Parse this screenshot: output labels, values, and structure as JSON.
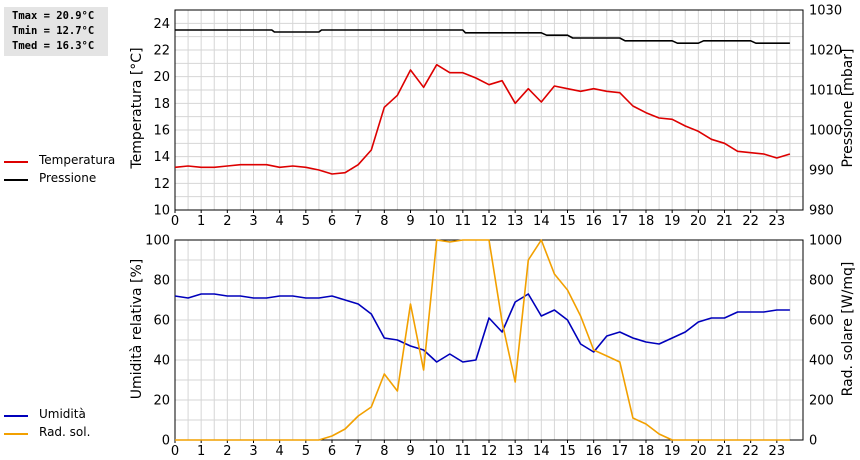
{
  "stats": {
    "tmax": "Tmax = 20.9°C",
    "tmin": "Tmin = 12.7°C",
    "tmed": "Tmed = 16.3°C"
  },
  "colors": {
    "temperatura": "#dd0000",
    "pressione": "#000000",
    "umidita": "#0000bb",
    "radiazione": "#f2a000",
    "grid": "#d6d6d6"
  },
  "legend_top": [
    {
      "name": "Temperatura",
      "color": "#dd0000"
    },
    {
      "name": "Pressione",
      "color": "#000000"
    }
  ],
  "legend_bottom": [
    {
      "name": "Umidità",
      "color": "#0000bb"
    },
    {
      "name": "Rad. sol.",
      "color": "#f2a000"
    }
  ],
  "chart_data": [
    {
      "type": "line",
      "xlabel": "",
      "ylabel": "Temperatura [°C]",
      "y2label": "Pressione [mbar]",
      "xlim": [
        0,
        24
      ],
      "ylim": [
        10,
        25
      ],
      "y2lim": [
        980,
        1030
      ],
      "xticks": [
        "0",
        "1",
        "2",
        "3",
        "4",
        "5",
        "6",
        "7",
        "8",
        "9",
        "10",
        "11",
        "12",
        "13",
        "14",
        "15",
        "16",
        "17",
        "18",
        "19",
        "20",
        "21",
        "22",
        "23"
      ],
      "yticks": [
        10,
        12,
        14,
        16,
        18,
        20,
        22,
        24
      ],
      "y2ticks": [
        980,
        990,
        1000,
        1010,
        1020,
        1030
      ],
      "grid": true,
      "legend": "left",
      "series": [
        {
          "name": "Temperatura",
          "axis": "left",
          "x": [
            0,
            0.5,
            1,
            1.5,
            2,
            2.5,
            3,
            3.5,
            4,
            4.5,
            5,
            5.5,
            6,
            6.5,
            7,
            7.5,
            8,
            8.5,
            9,
            9.5,
            10,
            10.5,
            11,
            11.5,
            12,
            12.5,
            13,
            13.5,
            14,
            14.5,
            15,
            15.5,
            16,
            16.5,
            17,
            17.5,
            18,
            18.5,
            19,
            19.5,
            20,
            20.5,
            21,
            21.5,
            22,
            22.5,
            23,
            23.5
          ],
          "values": [
            13.2,
            13.3,
            13.2,
            13.2,
            13.3,
            13.4,
            13.4,
            13.4,
            13.2,
            13.3,
            13.2,
            13.0,
            12.7,
            12.8,
            13.4,
            14.5,
            17.7,
            18.6,
            20.5,
            19.2,
            20.9,
            20.3,
            20.3,
            19.9,
            19.4,
            19.7,
            18.0,
            19.1,
            18.1,
            19.3,
            19.1,
            18.9,
            19.1,
            18.9,
            18.8,
            17.8,
            17.3,
            16.9,
            16.8,
            16.3,
            15.9,
            15.3,
            15.0,
            14.4,
            14.3,
            14.2,
            13.9,
            14.2
          ]
        },
        {
          "name": "Pressione",
          "axis": "right",
          "x": [
            0,
            3.7,
            3.8,
            5.5,
            5.6,
            11,
            11.1,
            14,
            14.2,
            15,
            15.2,
            17,
            17.2,
            19,
            19.2,
            20,
            20.2,
            22,
            22.2,
            23.5
          ],
          "values": [
            1025,
            1025,
            1024.5,
            1024.5,
            1025,
            1025,
            1024.3,
            1024.3,
            1023.7,
            1023.7,
            1023,
            1023,
            1022.3,
            1022.3,
            1021.7,
            1021.7,
            1022.3,
            1022.3,
            1021.7,
            1021.7
          ]
        }
      ]
    },
    {
      "type": "line",
      "xlabel": "",
      "ylabel": "Umidità relativa [%]",
      "y2label": "Rad. solare [W/mq]",
      "xlim": [
        0,
        24
      ],
      "ylim": [
        0,
        100
      ],
      "y2lim": [
        0,
        1000
      ],
      "xticks": [
        "0",
        "1",
        "2",
        "3",
        "4",
        "5",
        "6",
        "7",
        "8",
        "9",
        "10",
        "11",
        "12",
        "13",
        "14",
        "15",
        "16",
        "17",
        "18",
        "19",
        "20",
        "21",
        "22",
        "23"
      ],
      "yticks": [
        0,
        20,
        40,
        60,
        80,
        100
      ],
      "y2ticks": [
        0,
        200,
        400,
        600,
        800,
        1000
      ],
      "grid": true,
      "legend": "left",
      "series": [
        {
          "name": "Umidità",
          "axis": "left",
          "x": [
            0,
            0.5,
            1,
            1.5,
            2,
            2.5,
            3,
            3.5,
            4,
            4.5,
            5,
            5.5,
            6,
            6.5,
            7,
            7.5,
            8,
            8.5,
            9,
            9.5,
            10,
            10.5,
            11,
            11.5,
            12,
            12.5,
            13,
            13.5,
            14,
            14.5,
            15,
            15.5,
            16,
            16.5,
            17,
            17.5,
            18,
            18.5,
            19,
            19.5,
            20,
            20.5,
            21,
            21.5,
            22,
            22.5,
            23,
            23.5
          ],
          "values": [
            72,
            71,
            73,
            73,
            72,
            72,
            71,
            71,
            72,
            72,
            71,
            71,
            72,
            70,
            68,
            63,
            51,
            50,
            47,
            45,
            39,
            43,
            39,
            40,
            61,
            54,
            69,
            73,
            62,
            65,
            60,
            48,
            44,
            52,
            54,
            51,
            49,
            48,
            51,
            54,
            59,
            61,
            61,
            64,
            64,
            64,
            65,
            65
          ]
        },
        {
          "name": "Rad. sol.",
          "axis": "right",
          "x": [
            0,
            5,
            5.5,
            6,
            6.5,
            7,
            7.5,
            8,
            8.5,
            9,
            9.5,
            10,
            10.5,
            11,
            11.5,
            12,
            12.5,
            13,
            13.5,
            14,
            14.5,
            15,
            15.5,
            16,
            16.5,
            17,
            17.5,
            18,
            18.5,
            19,
            19.5,
            23.5
          ],
          "values": [
            0,
            0,
            0,
            20,
            55,
            120,
            165,
            330,
            245,
            680,
            350,
            1000,
            990,
            1000,
            1000,
            1000,
            590,
            290,
            900,
            1000,
            830,
            750,
            620,
            450,
            420,
            390,
            110,
            80,
            30,
            0,
            0,
            0
          ]
        }
      ]
    }
  ]
}
